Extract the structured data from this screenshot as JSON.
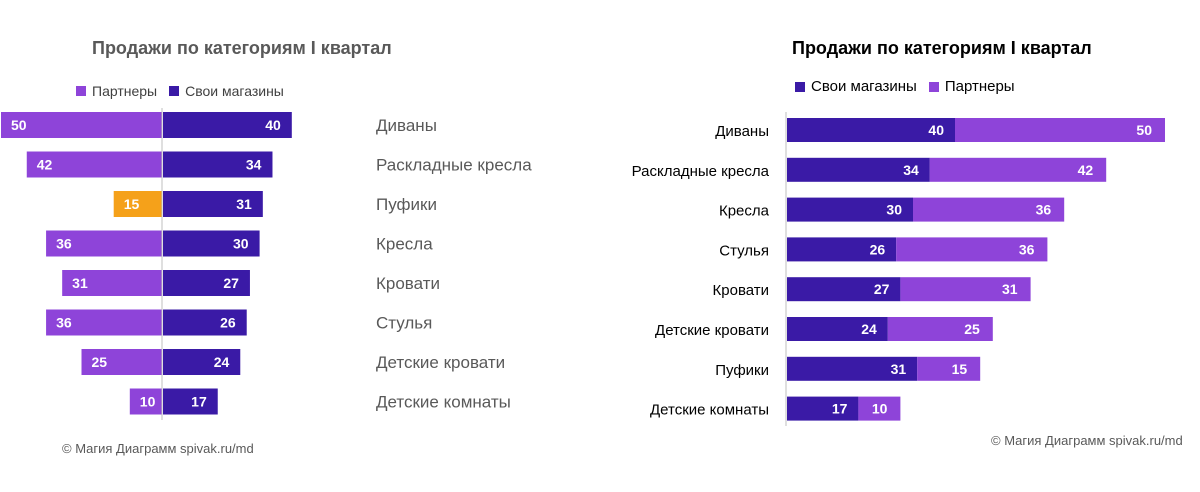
{
  "colors": {
    "own": "#3a1aa6",
    "partners": "#8e44d9",
    "highlight": "#f5a11a",
    "axis": "#bfbfbf",
    "label_white": "#ffffff"
  },
  "chart_data": [
    {
      "type": "bar",
      "layout": "diverging",
      "title": "Продажи по категориям I квартал",
      "legend": {
        "placement": "top",
        "entries": [
          "Партнеры",
          "Свои магазины"
        ]
      },
      "categories": [
        "Диваны",
        "Раскладные кресла",
        "Пуфики",
        "Кресла",
        "Кровати",
        "Стулья",
        "Детские кровати",
        "Детские комнаты"
      ],
      "series": [
        {
          "name": "Партнеры",
          "values": [
            50,
            42,
            15,
            36,
            31,
            36,
            25,
            10
          ],
          "direction": "left"
        },
        {
          "name": "Свои магазины",
          "values": [
            40,
            34,
            31,
            30,
            27,
            26,
            24,
            17
          ],
          "direction": "right"
        }
      ],
      "highlight": {
        "series": "Партнеры",
        "category": "Пуфики",
        "color": "#f5a11a"
      },
      "grid": false
    },
    {
      "type": "bar",
      "layout": "stacked-horizontal",
      "title": "Продажи по категориям I квартал",
      "legend": {
        "placement": "top",
        "entries": [
          "Свои магазины",
          "Партнеры"
        ]
      },
      "categories": [
        "Диваны",
        "Раскладные кресла",
        "Кресла",
        "Стулья",
        "Кровати",
        "Детские кровати",
        "Пуфики",
        "Детские комнаты"
      ],
      "series": [
        {
          "name": "Свои магазины",
          "values": [
            40,
            34,
            30,
            26,
            27,
            24,
            31,
            17
          ]
        },
        {
          "name": "Партнеры",
          "values": [
            50,
            42,
            36,
            36,
            31,
            25,
            15,
            10
          ]
        }
      ],
      "grid": false
    }
  ],
  "credit_left": "© Магия Диаграмм spivak.ru/md",
  "credit_right": "© Магия Диаграмм spivak.ru/md"
}
